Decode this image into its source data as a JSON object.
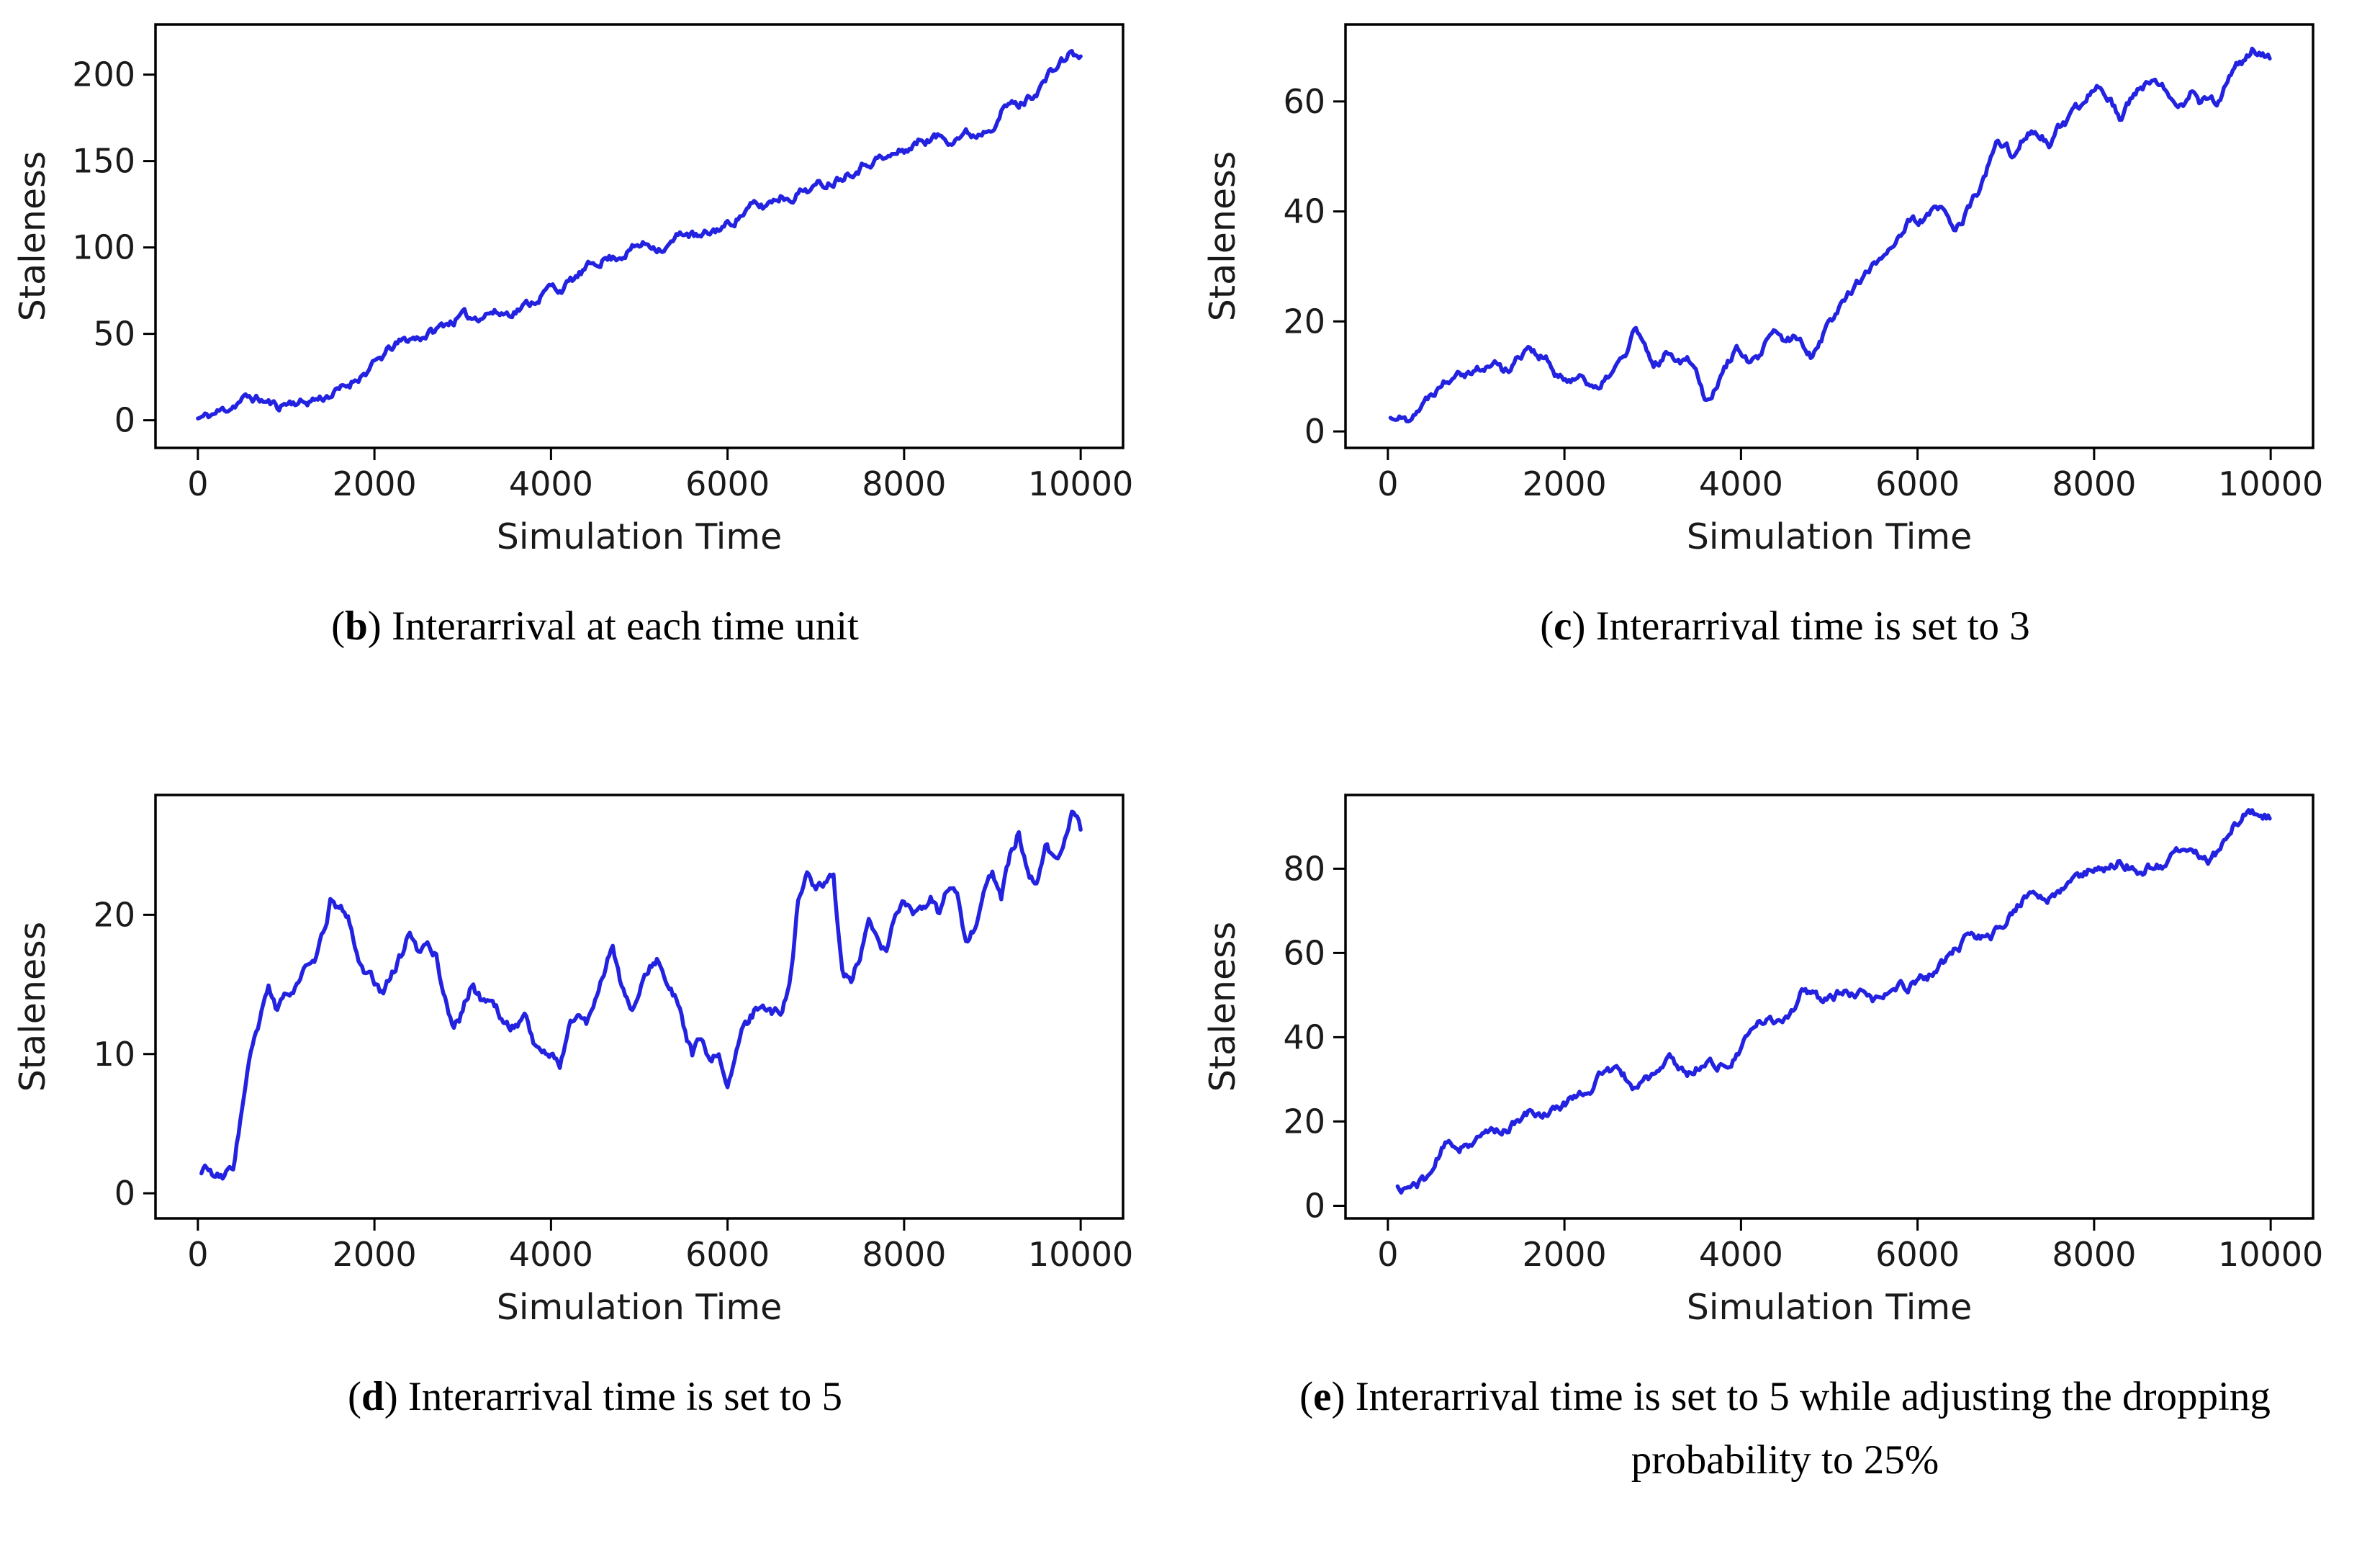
{
  "figure": {
    "background": "#ffffff",
    "axis_color": "#000000",
    "tick_label_color": "#1a1a1a",
    "line_color": "#2222e0"
  },
  "chart_data": [
    {
      "type": "line",
      "id": "b",
      "caption": {
        "open": "(",
        "letter": "b",
        "close": ") ",
        "text": "Interarrival at each time unit"
      },
      "xlabel": "Simulation Time",
      "ylabel": "Staleness",
      "x_step": 100,
      "x_draw_start": 0,
      "xlim": [
        -480,
        10480
      ],
      "ylim": [
        -16,
        229
      ],
      "xticks": [
        0,
        2000,
        4000,
        6000,
        8000,
        10000
      ],
      "yticks": [
        0,
        50,
        100,
        150,
        200
      ],
      "line_color": "#2222e0",
      "noise_amp": 2.2,
      "seed": 11,
      "y": [
        1,
        2,
        4,
        6,
        9,
        12,
        13,
        12,
        10,
        8,
        10,
        11,
        10,
        12,
        13,
        15,
        17,
        20,
        25,
        28,
        32,
        37,
        42,
        45,
        47,
        48,
        50,
        52,
        56,
        58,
        60,
        59,
        61,
        63,
        62,
        62,
        64,
        66,
        69,
        73,
        77,
        76,
        79,
        83,
        87,
        91,
        94,
        94,
        96,
        99,
        101,
        102,
        101,
        100,
        104,
        109,
        107,
        105,
        108,
        111,
        113,
        117,
        121,
        124,
        123,
        127,
        130,
        129,
        132,
        134,
        135,
        137,
        139,
        142,
        145,
        147,
        150,
        152,
        151,
        154,
        156,
        159,
        162,
        163,
        164,
        163,
        165,
        166,
        165,
        168,
        172,
        179,
        183,
        182,
        186,
        191,
        197,
        203,
        208,
        213,
        209
      ]
    },
    {
      "type": "line",
      "id": "c",
      "caption": {
        "open": "(",
        "letter": "c",
        "close": ") ",
        "text": "Interarrival time is set to 3"
      },
      "xlabel": "Simulation Time",
      "ylabel": "Staleness",
      "x_step": 100,
      "x_draw_start": 30,
      "xlim": [
        -480,
        10480
      ],
      "ylim": [
        -3,
        74
      ],
      "xticks": [
        0,
        2000,
        4000,
        6000,
        8000,
        10000
      ],
      "yticks": [
        0,
        20,
        40,
        60
      ],
      "line_color": "#2222e0",
      "noise_amp": 0.7,
      "seed": 22,
      "y": [
        2,
        3,
        2,
        4,
        5,
        7,
        9,
        10,
        12,
        11,
        12,
        11,
        13,
        11,
        12,
        14,
        16,
        14,
        13,
        10,
        9,
        10,
        10,
        9,
        7,
        10,
        12,
        14,
        19,
        15,
        12,
        13,
        15,
        13,
        14,
        11,
        6,
        8,
        11,
        14,
        15,
        12,
        13,
        16,
        18,
        16,
        17,
        16,
        14,
        17,
        20,
        22,
        25,
        27,
        28,
        30,
        32,
        34,
        36,
        38,
        38,
        39,
        40,
        40,
        37,
        38,
        41,
        44,
        48,
        52,
        52,
        50,
        53,
        55,
        54,
        52,
        55,
        56,
        58,
        60,
        63,
        63,
        60,
        57,
        60,
        62,
        63,
        63,
        62,
        61,
        60,
        62,
        60,
        61,
        60,
        63,
        66,
        67,
        70,
        68,
        68
      ]
    },
    {
      "type": "line",
      "id": "d",
      "caption": {
        "open": "(",
        "letter": "d",
        "close": ") ",
        "text": "Interarrival time is set to 5"
      },
      "xlabel": "Simulation Time",
      "ylabel": "Staleness",
      "x_step": 100,
      "x_draw_start": 40,
      "xlim": [
        -480,
        10480
      ],
      "ylim": [
        -1.8,
        28.6
      ],
      "xticks": [
        0,
        2000,
        4000,
        6000,
        8000,
        10000
      ],
      "yticks": [
        0,
        10,
        20
      ],
      "line_color": "#2222e0",
      "noise_amp": 0.32,
      "seed": 33,
      "y": [
        1,
        2,
        1,
        1,
        2,
        6,
        10,
        12,
        15,
        13,
        14,
        15,
        16,
        16,
        18,
        21,
        20,
        20,
        17,
        16,
        15,
        14,
        16,
        17,
        19,
        17,
        18,
        17,
        14,
        12,
        13,
        15,
        14,
        14,
        13,
        12,
        12,
        13,
        11,
        10,
        10,
        9,
        12,
        13,
        12,
        14,
        16,
        18,
        15,
        13,
        14,
        16,
        17,
        15,
        14,
        12,
        10,
        11,
        9,
        10,
        8,
        10,
        12,
        13,
        14,
        13,
        13,
        15,
        21,
        23,
        22,
        22,
        23,
        16,
        15,
        17,
        19,
        18,
        17,
        20,
        21,
        20,
        20,
        21,
        20,
        22,
        21,
        18,
        19,
        22,
        23,
        21,
        24,
        26,
        23,
        22,
        25,
        24,
        25,
        27,
        26
      ]
    },
    {
      "type": "line",
      "id": "e",
      "caption": {
        "open": "(",
        "letter": "e",
        "close": ") ",
        "text": "Interarrival time is set to 5 while adjusting the dropping probability to 25%"
      },
      "xlabel": "Simulation Time",
      "ylabel": "Staleness",
      "x_step": 100,
      "x_draw_start": 110,
      "xlim": [
        -480,
        10480
      ],
      "ylim": [
        -3,
        97.5
      ],
      "xticks": [
        0,
        2000,
        4000,
        6000,
        8000,
        10000
      ],
      "yticks": [
        0,
        20,
        40,
        60,
        80
      ],
      "line_color": "#2222e0",
      "noise_amp": 0.9,
      "seed": 44,
      "y": [
        4,
        4,
        4,
        5,
        6,
        8,
        13,
        15,
        14,
        15,
        15,
        17,
        18,
        18,
        19,
        20,
        22,
        22,
        22,
        23,
        24,
        26,
        27,
        28,
        31,
        32,
        32,
        30,
        28,
        30,
        31,
        32,
        35,
        33,
        31,
        33,
        34,
        34,
        33,
        34,
        37,
        41,
        43,
        44,
        44,
        45,
        47,
        52,
        50,
        49,
        49,
        50,
        51,
        49,
        50,
        49,
        49,
        51,
        52,
        52,
        54,
        54,
        56,
        58,
        60,
        62,
        64,
        64,
        63,
        65,
        68,
        70,
        73,
        74,
        73,
        73,
        74,
        76,
        78,
        79,
        80,
        79,
        81,
        82,
        81,
        79,
        80,
        80,
        81,
        83,
        84,
        85,
        84,
        82,
        84,
        88,
        91,
        93,
        93,
        93,
        92
      ]
    }
  ]
}
